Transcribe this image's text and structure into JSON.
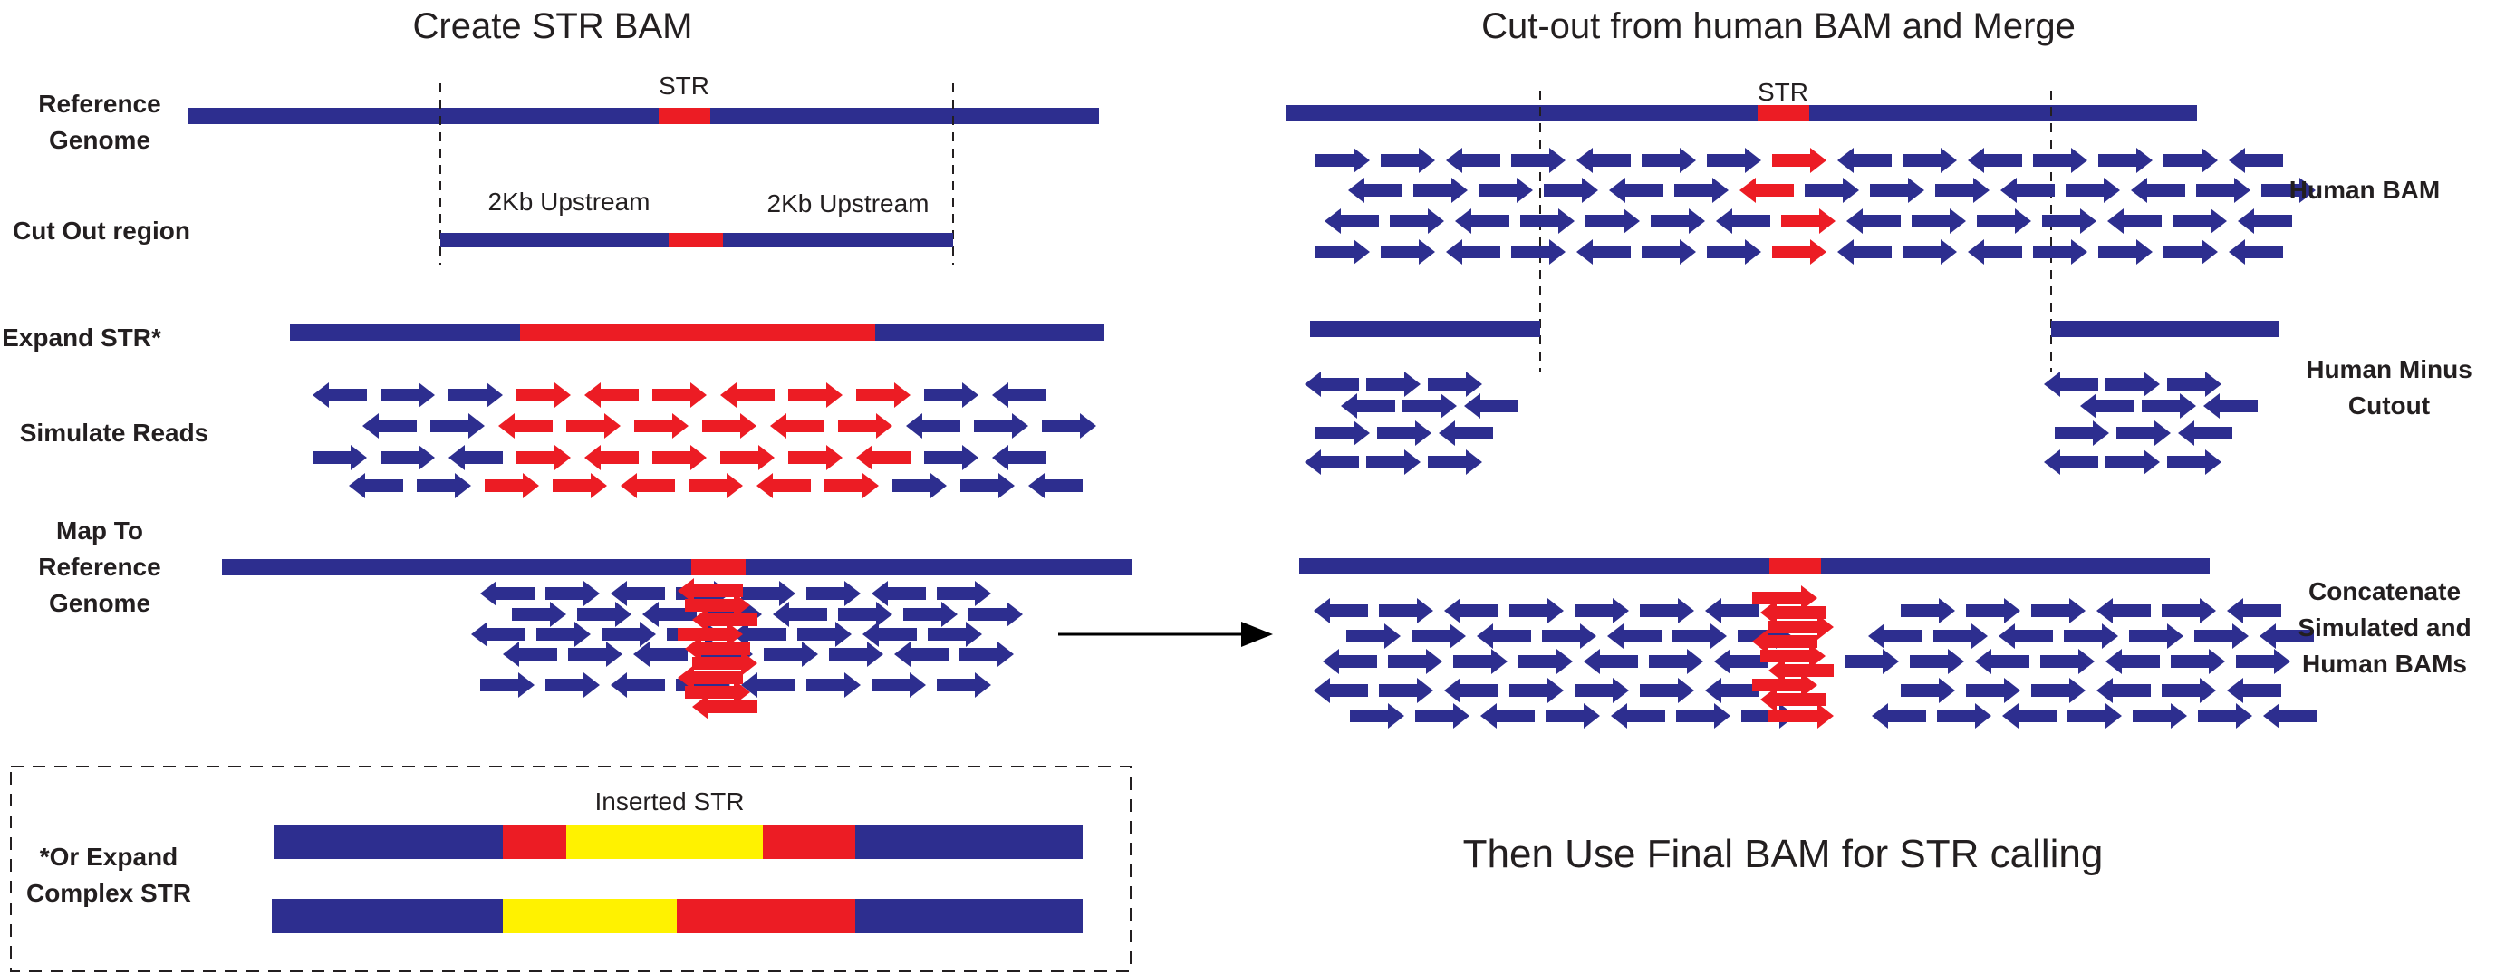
{
  "colors": {
    "reference": "#2d2e8f",
    "str": "#ec1c24",
    "inserted": "#fff200",
    "ink": "#231f20"
  },
  "left_panel": {
    "title": "Create STR BAM",
    "steps": {
      "reference_genome": {
        "line1": "Reference",
        "line2": "Genome",
        "str_label": "STR"
      },
      "cut_out_region": {
        "label": "Cut Out region",
        "upstream_left": "2Kb Upstream",
        "upstream_right": "2Kb Upstream"
      },
      "expand_str": {
        "label": "Expand STR*"
      },
      "simulate_reads": {
        "label": "Simulate Reads"
      },
      "map_to_reference": {
        "line1": "Map To",
        "line2": "Reference",
        "line3": "Genome"
      }
    },
    "complex_box": {
      "line1": "*Or Expand",
      "line2": "Complex STR",
      "inserted_label": "Inserted STR"
    }
  },
  "right_panel": {
    "title": "Cut-out from human BAM and Merge",
    "str_label": "STR",
    "human_bam": {
      "label": "Human BAM"
    },
    "human_minus": {
      "line1": "Human Minus",
      "line2": "Cutout"
    },
    "concatenate": {
      "line1": "Concatenate",
      "line2": "Simulated and",
      "line3": "Human BAMs"
    },
    "footer": "Then Use Final BAM for STR calling"
  }
}
